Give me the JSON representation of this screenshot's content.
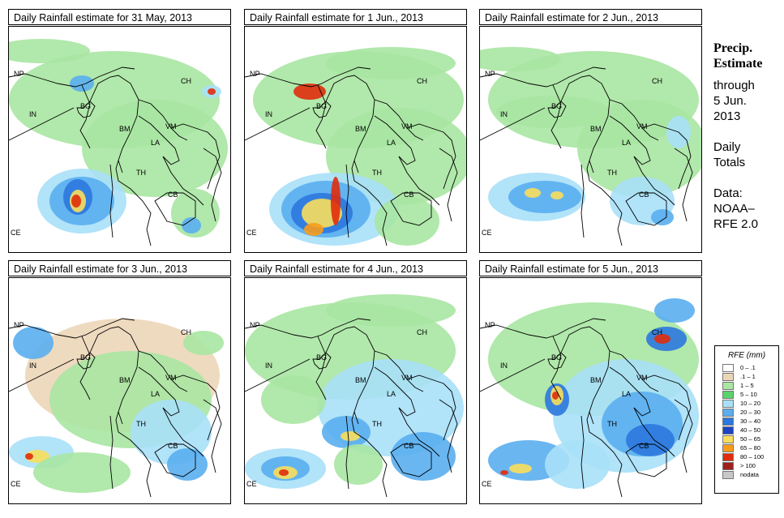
{
  "panels": [
    {
      "title": "Daily Rainfall estimate for  31 May, 2013"
    },
    {
      "title": "Daily Rainfall estimate for  1 Jun., 2013"
    },
    {
      "title": "Daily Rainfall estimate for  2 Jun., 2013"
    },
    {
      "title": "Daily Rainfall estimate for  3 Jun., 2013"
    },
    {
      "title": "Daily Rainfall estimate for  4 Jun., 2013"
    },
    {
      "title": "Daily Rainfall estimate for  5 Jun., 2013"
    }
  ],
  "country_labels": {
    "np": "NP",
    "in": "IN",
    "bg": "BG",
    "bm": "BM",
    "ch": "CH",
    "vm": "VM",
    "la": "LA",
    "th": "TH",
    "cb": "CB",
    "ce": "CE"
  },
  "side": {
    "heading1": "Precip.",
    "heading2": "Estimate",
    "line1": "through",
    "line2": "5 Jun.",
    "line3": "2013",
    "line4": "Daily",
    "line5": "Totals",
    "line6": "Data:",
    "line7": "NOAA–",
    "line8": "RFE 2.0"
  },
  "legend": {
    "title": "RFE (mm)",
    "items": [
      {
        "label": "0 – .1",
        "color": "#ffffff"
      },
      {
        "label": ".1 – 1",
        "color": "#ecd6b8"
      },
      {
        "label": "1 – 5",
        "color": "#a9e6a2"
      },
      {
        "label": "5 – 10",
        "color": "#5ad36a"
      },
      {
        "label": "10 – 20",
        "color": "#a8e0f8"
      },
      {
        "label": "20 – 30",
        "color": "#5aaef0"
      },
      {
        "label": "30 – 40",
        "color": "#2c78de"
      },
      {
        "label": "40 – 50",
        "color": "#1c44c4"
      },
      {
        "label": "50 – 65",
        "color": "#f8de5c"
      },
      {
        "label": "65 – 80",
        "color": "#f89c1c"
      },
      {
        "label": "80 – 100",
        "color": "#e02c0c"
      },
      {
        "label": "> 100",
        "color": "#a0201c"
      },
      {
        "label": "nodata",
        "color": "#c8c8c8"
      }
    ]
  },
  "colors": {
    "tan": "#ecd6b8",
    "lgreen": "#a9e6a2",
    "green": "#5ad36a",
    "lblue": "#a8e0f8",
    "blue": "#5aaef0",
    "dblue": "#2c78de",
    "navy": "#1c44c4",
    "yellow": "#f8de5c",
    "orange": "#f89c1c",
    "red": "#e02c0c",
    "dred": "#a0201c"
  }
}
